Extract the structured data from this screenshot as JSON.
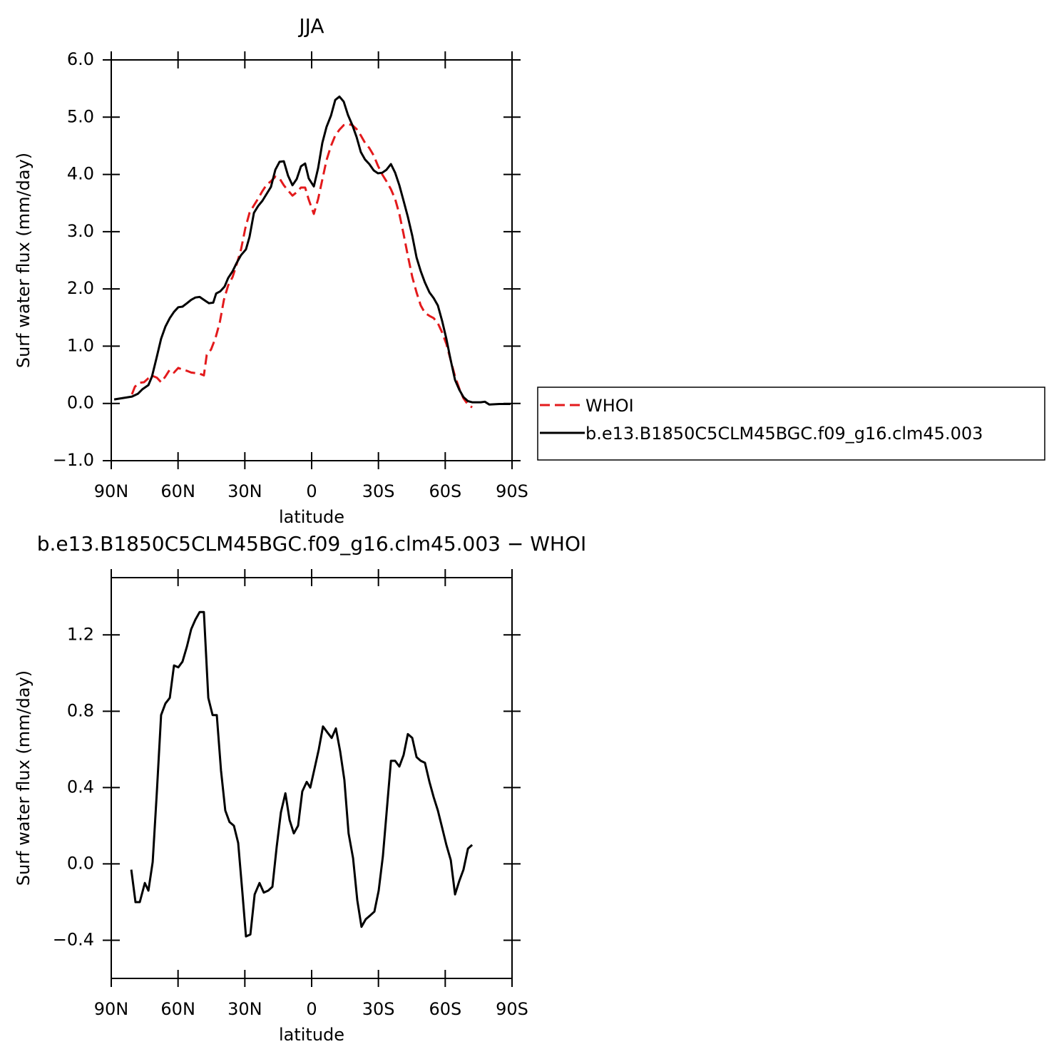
{
  "chart_data": [
    {
      "type": "line",
      "title": "JJA",
      "x_label": "latitude",
      "y_label": "Surf water flux (mm/day)",
      "xlim": [
        90,
        -90
      ],
      "xticks": [
        {
          "value": 90,
          "label": "90N"
        },
        {
          "value": 60,
          "label": "60N"
        },
        {
          "value": 30,
          "label": "30N"
        },
        0,
        {
          "value": -30,
          "label": "30S"
        },
        {
          "value": -60,
          "label": "60S"
        },
        {
          "value": -90,
          "label": "90S"
        }
      ],
      "ylim": [
        -1,
        6
      ],
      "yticks": [
        {
          "value": -1,
          "label": "−1.0"
        },
        {
          "value": 0,
          "label": "0.0"
        },
        {
          "value": 1,
          "label": "1.0"
        },
        {
          "value": 2,
          "label": "2.0"
        },
        {
          "value": 3,
          "label": "3.0"
        },
        {
          "value": 4,
          "label": "4.0"
        },
        {
          "value": 5,
          "label": "5.0"
        },
        {
          "value": 6,
          "label": "6.0"
        }
      ],
      "legend": "outside-right",
      "series": [
        {
          "name": "WHOI",
          "color": "#e31a1c",
          "line_style": "dashed",
          "x": [
            80.7,
            79.4,
            77.5,
            75.3,
            73.3,
            71.4,
            69.5,
            67.6,
            65.7,
            63.7,
            61.8,
            59.9,
            58,
            56,
            54.1,
            52.2,
            50.3,
            48.4,
            47.1,
            45.2,
            43.2,
            41.3,
            39.4,
            37.5,
            35.5,
            33.6,
            31.7,
            29.8,
            27.9,
            25.9,
            24,
            22.1,
            20.2,
            18.3,
            16.3,
            14.4,
            12.5,
            10.6,
            8.6,
            6.7,
            4.8,
            2.9,
            1.3,
            -1,
            -2.9,
            -4.8,
            -6.7,
            -8.7,
            -10.6,
            -12.5,
            -14.4,
            -16.3,
            -18.3,
            -20.2,
            -22.1,
            -24,
            -25.9,
            -27.9,
            -29.8,
            -31.7,
            -33.6,
            -35.6,
            -37.5,
            -39.4,
            -41.3,
            -43.2,
            -45.2,
            -47.1,
            -49,
            -50.9,
            -52.9,
            -54.8,
            -56.7,
            -58.6,
            -60.5,
            -62.5,
            -64.4,
            -66.3,
            -68.2,
            -70.2,
            -72.1
          ],
          "values": [
            0.16,
            0.29,
            0.36,
            0.37,
            0.44,
            0.48,
            0.45,
            0.37,
            0.47,
            0.59,
            0.54,
            0.62,
            0.59,
            0.57,
            0.54,
            0.53,
            0.52,
            0.49,
            0.85,
            0.94,
            1.14,
            1.41,
            1.81,
            2.06,
            2.21,
            2.44,
            2.69,
            3.06,
            3.33,
            3.46,
            3.58,
            3.71,
            3.82,
            3.88,
            3.96,
            3.93,
            3.81,
            3.72,
            3.63,
            3.69,
            3.77,
            3.77,
            3.56,
            3.31,
            3.57,
            3.91,
            4.25,
            4.5,
            4.68,
            4.78,
            4.86,
            4.88,
            4.86,
            4.79,
            4.68,
            4.55,
            4.46,
            4.33,
            4.15,
            4.0,
            3.88,
            3.74,
            3.57,
            3.31,
            2.96,
            2.58,
            2.21,
            1.94,
            1.71,
            1.58,
            1.53,
            1.49,
            1.4,
            1.24,
            1.04,
            0.75,
            0.47,
            0.26,
            0.09,
            -0.02,
            -0.07
          ]
        },
        {
          "name": "b.e13.B1850C5CLM45BGC.f09_g16.clm45.003",
          "color": "#000000",
          "line_style": "solid",
          "x": [
            88.7,
            80.7,
            78,
            75.9,
            73.3,
            71.7,
            69.5,
            67.6,
            65.7,
            63.7,
            61.8,
            59.9,
            58,
            56,
            54.1,
            52.2,
            50.3,
            48,
            46.1,
            44.2,
            42.9,
            41,
            39.1,
            37.5,
            35.5,
            33.6,
            31.7,
            29.5,
            27.9,
            25.9,
            24,
            22.1,
            20.2,
            18.3,
            16.3,
            14.4,
            12.5,
            10.6,
            8.6,
            6.7,
            4.8,
            2.9,
            1.3,
            -1,
            -2.9,
            -4.8,
            -6.7,
            -8.7,
            -10.6,
            -12.5,
            -14.4,
            -16.3,
            -18.3,
            -20.2,
            -22.1,
            -24,
            -25.9,
            -27.9,
            -29.8,
            -31.7,
            -33.6,
            -35.6,
            -37.5,
            -39.4,
            -41.3,
            -43.2,
            -45.2,
            -47.1,
            -49,
            -50.9,
            -52.9,
            -54.8,
            -56.7,
            -58.6,
            -60.5,
            -62.5,
            -64.4,
            -66.3,
            -68.2,
            -70.2,
            -72.1,
            -74,
            -75.9,
            -77.8,
            -79.8,
            -84.3,
            -89.4
          ],
          "values": [
            0.07,
            0.12,
            0.17,
            0.25,
            0.32,
            0.47,
            0.82,
            1.13,
            1.34,
            1.49,
            1.6,
            1.68,
            1.69,
            1.75,
            1.81,
            1.85,
            1.86,
            1.8,
            1.75,
            1.76,
            1.92,
            1.96,
            2.04,
            2.19,
            2.31,
            2.46,
            2.59,
            2.69,
            2.91,
            3.33,
            3.45,
            3.54,
            3.66,
            3.78,
            4.08,
            4.22,
            4.23,
            3.98,
            3.81,
            3.92,
            4.14,
            4.19,
            3.93,
            3.79,
            4.11,
            4.55,
            4.83,
            5.03,
            5.3,
            5.36,
            5.27,
            5.04,
            4.86,
            4.65,
            4.39,
            4.26,
            4.18,
            4.07,
            4.02,
            4.03,
            4.08,
            4.18,
            4.03,
            3.81,
            3.54,
            3.26,
            2.93,
            2.55,
            2.31,
            2.11,
            1.94,
            1.84,
            1.71,
            1.44,
            1.13,
            0.75,
            0.41,
            0.24,
            0.11,
            0.04,
            0.02,
            0.02,
            0.02,
            0.03,
            -0.02,
            -0.01,
            -0.01
          ]
        }
      ]
    },
    {
      "type": "line",
      "title": "b.e13.B1850C5CLM45BGC.f09_g16.clm45.003 − WHOI",
      "x_label": "latitude",
      "y_label": "Surf water flux (mm/day)",
      "xlim": [
        90,
        -90
      ],
      "xticks": [
        {
          "value": 90,
          "label": "90N"
        },
        {
          "value": 60,
          "label": "60N"
        },
        {
          "value": 30,
          "label": "30N"
        },
        0,
        {
          "value": -30,
          "label": "30S"
        },
        {
          "value": -60,
          "label": "60S"
        },
        {
          "value": -90,
          "label": "90S"
        }
      ],
      "ylim": [
        -0.6,
        1.5
      ],
      "yticks": [
        {
          "value": -0.4,
          "label": "−0.4"
        },
        {
          "value": 0,
          "label": "0.0"
        },
        0.4,
        0.8,
        1.2
      ],
      "color": "#000000",
      "line_style": "solid",
      "x": [
        81,
        79.1,
        77.2,
        74.9,
        73.3,
        71.4,
        69.5,
        67.6,
        65.7,
        63.7,
        61.8,
        59.9,
        58,
        56,
        54.1,
        52.2,
        50.3,
        48.4,
        46.4,
        44.5,
        42.6,
        40.7,
        38.8,
        36.9,
        34.9,
        33,
        31.1,
        29.5,
        27.5,
        25.6,
        23.4,
        21.5,
        19.5,
        17.6,
        15.7,
        13.8,
        11.8,
        9.9,
        8,
        6.1,
        4.2,
        2.2,
        0.6,
        -1.3,
        -3.2,
        -5.1,
        -7,
        -9,
        -10.9,
        -12.8,
        -14.7,
        -16.6,
        -18.6,
        -20.5,
        -22.4,
        -24.3,
        -26.3,
        -28.2,
        -30.1,
        -32,
        -33.6,
        -35.6,
        -37.5,
        -39.4,
        -41.3,
        -43.2,
        -45.2,
        -47.1,
        -49,
        -50.9,
        -52.9,
        -54.8,
        -56.7,
        -58.6,
        -60.5,
        -62.5,
        -64.4,
        -66.3,
        -68.2,
        -70.2,
        -72.1
      ],
      "values": [
        -0.03,
        -0.2,
        -0.2,
        -0.1,
        -0.14,
        0.01,
        0.38,
        0.78,
        0.84,
        0.87,
        1.04,
        1.03,
        1.06,
        1.14,
        1.23,
        1.28,
        1.32,
        1.32,
        0.87,
        0.78,
        0.78,
        0.49,
        0.28,
        0.22,
        0.2,
        0.11,
        -0.15,
        -0.38,
        -0.37,
        -0.16,
        -0.1,
        -0.15,
        -0.14,
        -0.12,
        0.09,
        0.27,
        0.37,
        0.23,
        0.16,
        0.2,
        0.38,
        0.43,
        0.4,
        0.5,
        0.6,
        0.72,
        0.69,
        0.66,
        0.71,
        0.59,
        0.44,
        0.16,
        0.03,
        -0.19,
        -0.33,
        -0.29,
        -0.27,
        -0.25,
        -0.14,
        0.04,
        0.26,
        0.54,
        0.54,
        0.51,
        0.57,
        0.68,
        0.66,
        0.56,
        0.54,
        0.53,
        0.43,
        0.35,
        0.28,
        0.19,
        0.1,
        0.02,
        -0.16,
        -0.09,
        -0.03,
        0.08,
        0.1
      ]
    }
  ]
}
